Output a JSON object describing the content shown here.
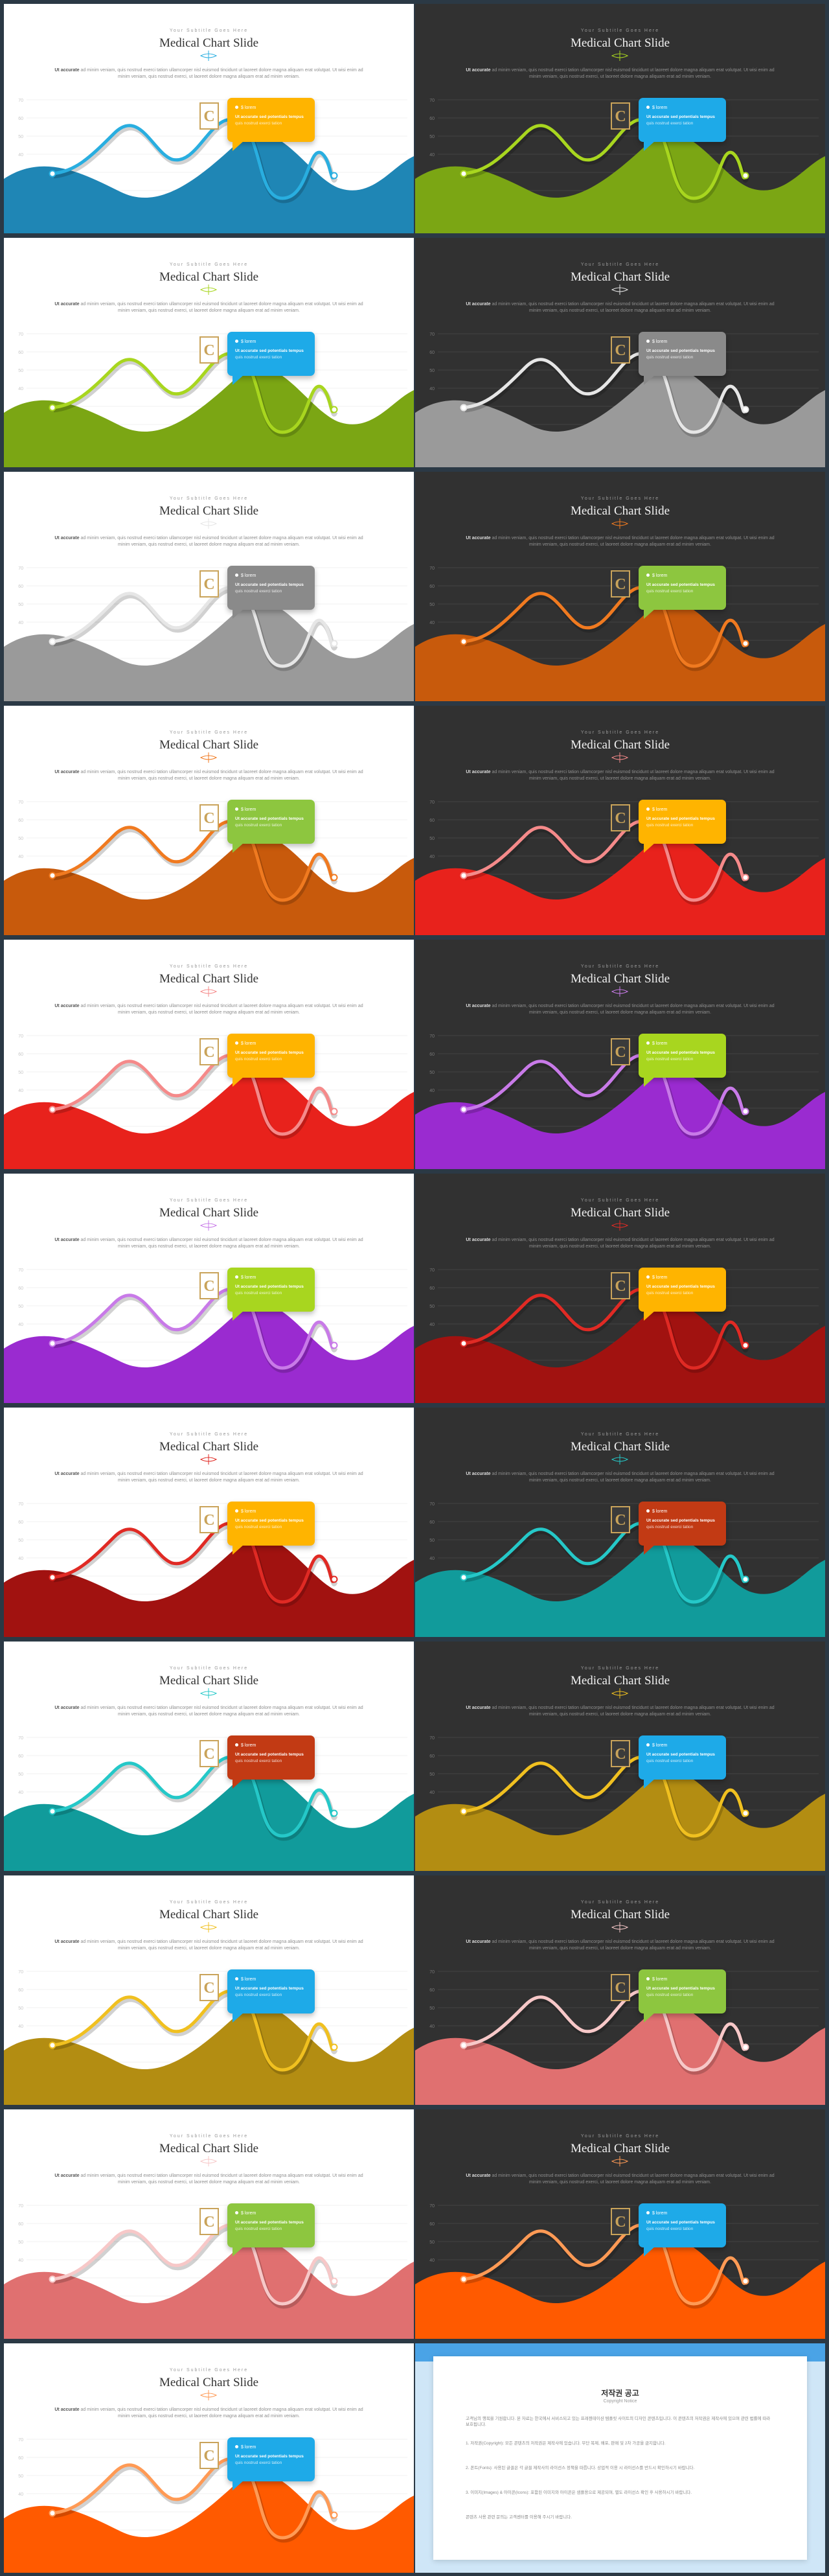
{
  "slide_common": {
    "subtitle": "Your Subtitle Goes Here",
    "title": "Medical Chart Slide",
    "body_lead": "Ut accurate",
    "body_text": "ad minim veniam, quis nostrud exerci tation ullamcorper nisl euismod tincidunt ut laoreet dolore magna aliquam erat volutpat. Ut wisi enim ad minim veniam, quis nostrud exerci, ut laoreet dolore magna aliquam erat ad minim veniam.",
    "badge_letter": "C",
    "callout_head": "$ lorem",
    "callout_line1": "Ut accurate sed potentials tempus",
    "callout_line2": "quis nostrud exerci tation"
  },
  "slides": [
    {
      "theme": "light",
      "fill": "#1f86b5",
      "line": "#29aee0",
      "callout": "#ffb400"
    },
    {
      "theme": "dark",
      "fill": "#7ba614",
      "line": "#a8d61f",
      "callout": "#1eaae8"
    },
    {
      "theme": "light",
      "fill": "#7ba614",
      "line": "#a8d61f",
      "callout": "#1eaae8"
    },
    {
      "theme": "dark",
      "fill": "#9a9a9a",
      "line": "#e6e6e6",
      "callout": "#8a8a8a"
    },
    {
      "theme": "light",
      "fill": "#9a9a9a",
      "line": "#e6e6e6",
      "callout": "#8a8a8a"
    },
    {
      "theme": "dark",
      "fill": "#c85a0c",
      "line": "#f07a20",
      "callout": "#8dc63f"
    },
    {
      "theme": "light",
      "fill": "#c85a0c",
      "line": "#f07a20",
      "callout": "#8dc63f"
    },
    {
      "theme": "dark",
      "fill": "#e8221c",
      "line": "#f58a8a",
      "callout": "#ffb400"
    },
    {
      "theme": "light",
      "fill": "#e8221c",
      "line": "#f58a8a",
      "callout": "#ffb400"
    },
    {
      "theme": "dark",
      "fill": "#9a2bd0",
      "line": "#c87ae8",
      "callout": "#a8d61f"
    },
    {
      "theme": "light",
      "fill": "#9a2bd0",
      "line": "#c87ae8",
      "callout": "#a8d61f"
    },
    {
      "theme": "dark",
      "fill": "#a11210",
      "line": "#e02a24",
      "callout": "#ffb400"
    },
    {
      "theme": "light",
      "fill": "#a11210",
      "line": "#e02a24",
      "callout": "#ffb400"
    },
    {
      "theme": "dark",
      "fill": "#119b9b",
      "line": "#25c8c8",
      "callout": "#c23a14"
    },
    {
      "theme": "light",
      "fill": "#119b9b",
      "line": "#25c8c8",
      "callout": "#c23a14"
    },
    {
      "theme": "dark",
      "fill": "#b38d12",
      "line": "#f0c020",
      "callout": "#1eaae8"
    },
    {
      "theme": "light",
      "fill": "#b38d12",
      "line": "#f0c020",
      "callout": "#1eaae8"
    },
    {
      "theme": "dark",
      "fill": "#e07070",
      "line": "#f7c8c8",
      "callout": "#8dc63f"
    },
    {
      "theme": "light",
      "fill": "#e07070",
      "line": "#f7c8c8",
      "callout": "#8dc63f"
    },
    {
      "theme": "dark",
      "fill": "#ff5a00",
      "line": "#ff9a55",
      "callout": "#1eaae8"
    },
    {
      "theme": "light",
      "fill": "#ff5a00",
      "line": "#ff9a55",
      "callout": "#1eaae8"
    }
  ],
  "y_ticks": [
    "70",
    "60",
    "50",
    "40",
    "30",
    "20",
    "10"
  ],
  "copyright": {
    "title": "저작권 공고",
    "subtitle": "Copyright Notice",
    "p1": "고객님의 행복을 기원합니다. 본 자료는 한국에서 서비스되고 있는 프레젠테이션 템플릿 사이트의 디자인 콘텐츠입니다. 이 콘텐츠의 저작권은 제작사에 있으며 관련 법률에 따라 보호됩니다.",
    "p2": "1. 저작권(Copyright): 모든 콘텐츠의 저작권은 제작사에 있습니다. 무단 복제, 배포, 판매 및 2차 가공을 금지합니다.",
    "p3": "2. 폰트(Fonts): 사용된 글꼴은 각 글꼴 제작사의 라이선스 정책을 따릅니다. 상업적 이용 시 라이선스를 반드시 확인하시기 바랍니다.",
    "p4": "3. 이미지(Images) & 아이콘(Icons): 포함된 이미지와 아이콘은 샘플용으로 제공되며, 별도 라이선스 확인 후 사용하시기 바랍니다.",
    "p5": "콘텐츠 사용 관련 문의는 고객센터를 이용해 주시기 바랍니다."
  }
}
